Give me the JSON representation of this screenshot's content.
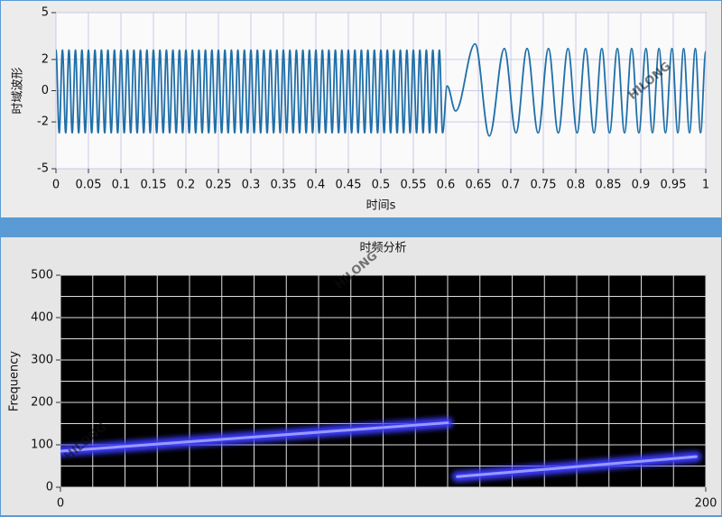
{
  "watermark": "HILONG",
  "chart_data": [
    {
      "type": "line",
      "y_label": "时域波形",
      "x_label": "时间s",
      "xlim": [
        0,
        1
      ],
      "xticks": [
        0,
        0.05,
        0.1,
        0.15,
        0.2,
        0.25,
        0.3,
        0.35,
        0.4,
        0.45,
        0.5,
        0.55,
        0.6,
        0.65,
        0.7,
        0.75,
        0.8,
        0.85,
        0.9,
        0.95,
        1
      ],
      "ylim": [
        -5,
        5
      ],
      "yticks": [
        -5,
        -2,
        0,
        2,
        5
      ],
      "grid": true,
      "series": [
        {
          "color": "#1f6fa8",
          "x": [
            0,
            0.005,
            0.01,
            0.015,
            0.02,
            0.025,
            0.03,
            0.035,
            0.04,
            0.045,
            0.05,
            0.055,
            0.06,
            0.065,
            0.07,
            0.075,
            0.08,
            0.085,
            0.09,
            0.095,
            0.1,
            0.105,
            0.11,
            0.115,
            0.12,
            0.125,
            0.13,
            0.135,
            0.14,
            0.145,
            0.15,
            0.155,
            0.16,
            0.165,
            0.17,
            0.175,
            0.18,
            0.185,
            0.19,
            0.195,
            0.2,
            0.205,
            0.21,
            0.215,
            0.22,
            0.225,
            0.23,
            0.235,
            0.24,
            0.245,
            0.25,
            0.255,
            0.26,
            0.265,
            0.27,
            0.275,
            0.28,
            0.285,
            0.29,
            0.295,
            0.3,
            0.305,
            0.31,
            0.315,
            0.32,
            0.325,
            0.33,
            0.335,
            0.34,
            0.345,
            0.35,
            0.355,
            0.36,
            0.365,
            0.37,
            0.375,
            0.38,
            0.385,
            0.39,
            0.395,
            0.4,
            0.405,
            0.41,
            0.415,
            0.42,
            0.425,
            0.43,
            0.435,
            0.44,
            0.445,
            0.45,
            0.455,
            0.46,
            0.465,
            0.47,
            0.475,
            0.48,
            0.485,
            0.49,
            0.495,
            0.5,
            0.505,
            0.51,
            0.515,
            0.52,
            0.525,
            0.53,
            0.535,
            0.54,
            0.545,
            0.55,
            0.555,
            0.56,
            0.565,
            0.57,
            0.575,
            0.58,
            0.585,
            0.59,
            0.595,
            0.602,
            0.615,
            0.645,
            0.667,
            0.69,
            0.708,
            0.725,
            0.742,
            0.758,
            0.773,
            0.788,
            0.802,
            0.815,
            0.828,
            0.84,
            0.852,
            0.864,
            0.875,
            0.886,
            0.897,
            0.908,
            0.918,
            0.928,
            0.938,
            0.948,
            0.957,
            0.966,
            0.975,
            0.984,
            0.992,
            1
          ],
          "values": [
            2.6,
            -2.7,
            2.6,
            -2.7,
            2.6,
            -2.7,
            2.6,
            -2.7,
            2.6,
            -2.7,
            2.6,
            -2.7,
            2.6,
            -2.7,
            2.6,
            -2.7,
            2.6,
            -2.7,
            2.6,
            -2.7,
            2.6,
            -2.7,
            2.6,
            -2.7,
            2.6,
            -2.7,
            2.6,
            -2.7,
            2.6,
            -2.7,
            2.6,
            -2.7,
            2.6,
            -2.7,
            2.6,
            -2.7,
            2.6,
            -2.7,
            2.6,
            -2.7,
            2.6,
            -2.7,
            2.6,
            -2.7,
            2.6,
            -2.7,
            2.6,
            -2.7,
            2.6,
            -2.7,
            2.6,
            -2.7,
            2.6,
            -2.7,
            2.6,
            -2.7,
            2.6,
            -2.7,
            2.6,
            -2.7,
            2.6,
            -2.7,
            2.6,
            -2.7,
            2.6,
            -2.7,
            2.6,
            -2.7,
            2.6,
            -2.7,
            2.6,
            -2.7,
            2.6,
            -2.7,
            2.6,
            -2.7,
            2.6,
            -2.7,
            2.6,
            -2.7,
            2.6,
            -2.7,
            2.6,
            -2.7,
            2.6,
            -2.7,
            2.6,
            -2.7,
            2.6,
            -2.7,
            2.6,
            -2.7,
            2.6,
            -2.7,
            2.6,
            -2.7,
            2.6,
            -2.7,
            2.6,
            -2.7,
            2.6,
            -2.7,
            2.6,
            -2.7,
            2.6,
            -2.7,
            2.6,
            -2.7,
            2.6,
            -2.7,
            2.6,
            -2.7,
            2.6,
            -2.7,
            2.6,
            -2.7,
            2.6,
            -2.7,
            2.6,
            -2.7,
            0.3,
            -1.3,
            3.0,
            -2.9,
            2.7,
            -2.7,
            2.7,
            -2.7,
            2.7,
            -2.7,
            2.7,
            -2.7,
            2.7,
            -2.7,
            2.7,
            -2.7,
            2.7,
            -2.7,
            2.7,
            -2.7,
            2.7,
            -2.7,
            2.7,
            -2.7,
            2.7,
            -2.7,
            2.7,
            -2.7,
            2.7,
            -2.7,
            2.5
          ]
        }
      ]
    },
    {
      "type": "spectrogram",
      "title": "时频分析",
      "y_label": "Frequency",
      "xlim": [
        0,
        200
      ],
      "xticks": [
        0,
        200
      ],
      "xgrid": [
        10,
        20,
        30,
        40,
        50,
        60,
        70,
        80,
        90,
        100,
        110,
        120,
        130,
        140,
        150,
        160,
        170,
        180,
        190
      ],
      "ylim": [
        0,
        500
      ],
      "yticks": [
        0,
        100,
        200,
        300,
        400,
        500
      ],
      "ygrid": [
        50,
        150,
        250,
        350,
        450
      ],
      "grid": true,
      "series": [
        {
          "color": "#3a3aff",
          "x": [
            0,
            120
          ],
          "values": [
            85,
            152
          ]
        },
        {
          "color": "#3a3aff",
          "x": [
            123,
            197
          ],
          "values": [
            25,
            72
          ]
        }
      ]
    }
  ]
}
